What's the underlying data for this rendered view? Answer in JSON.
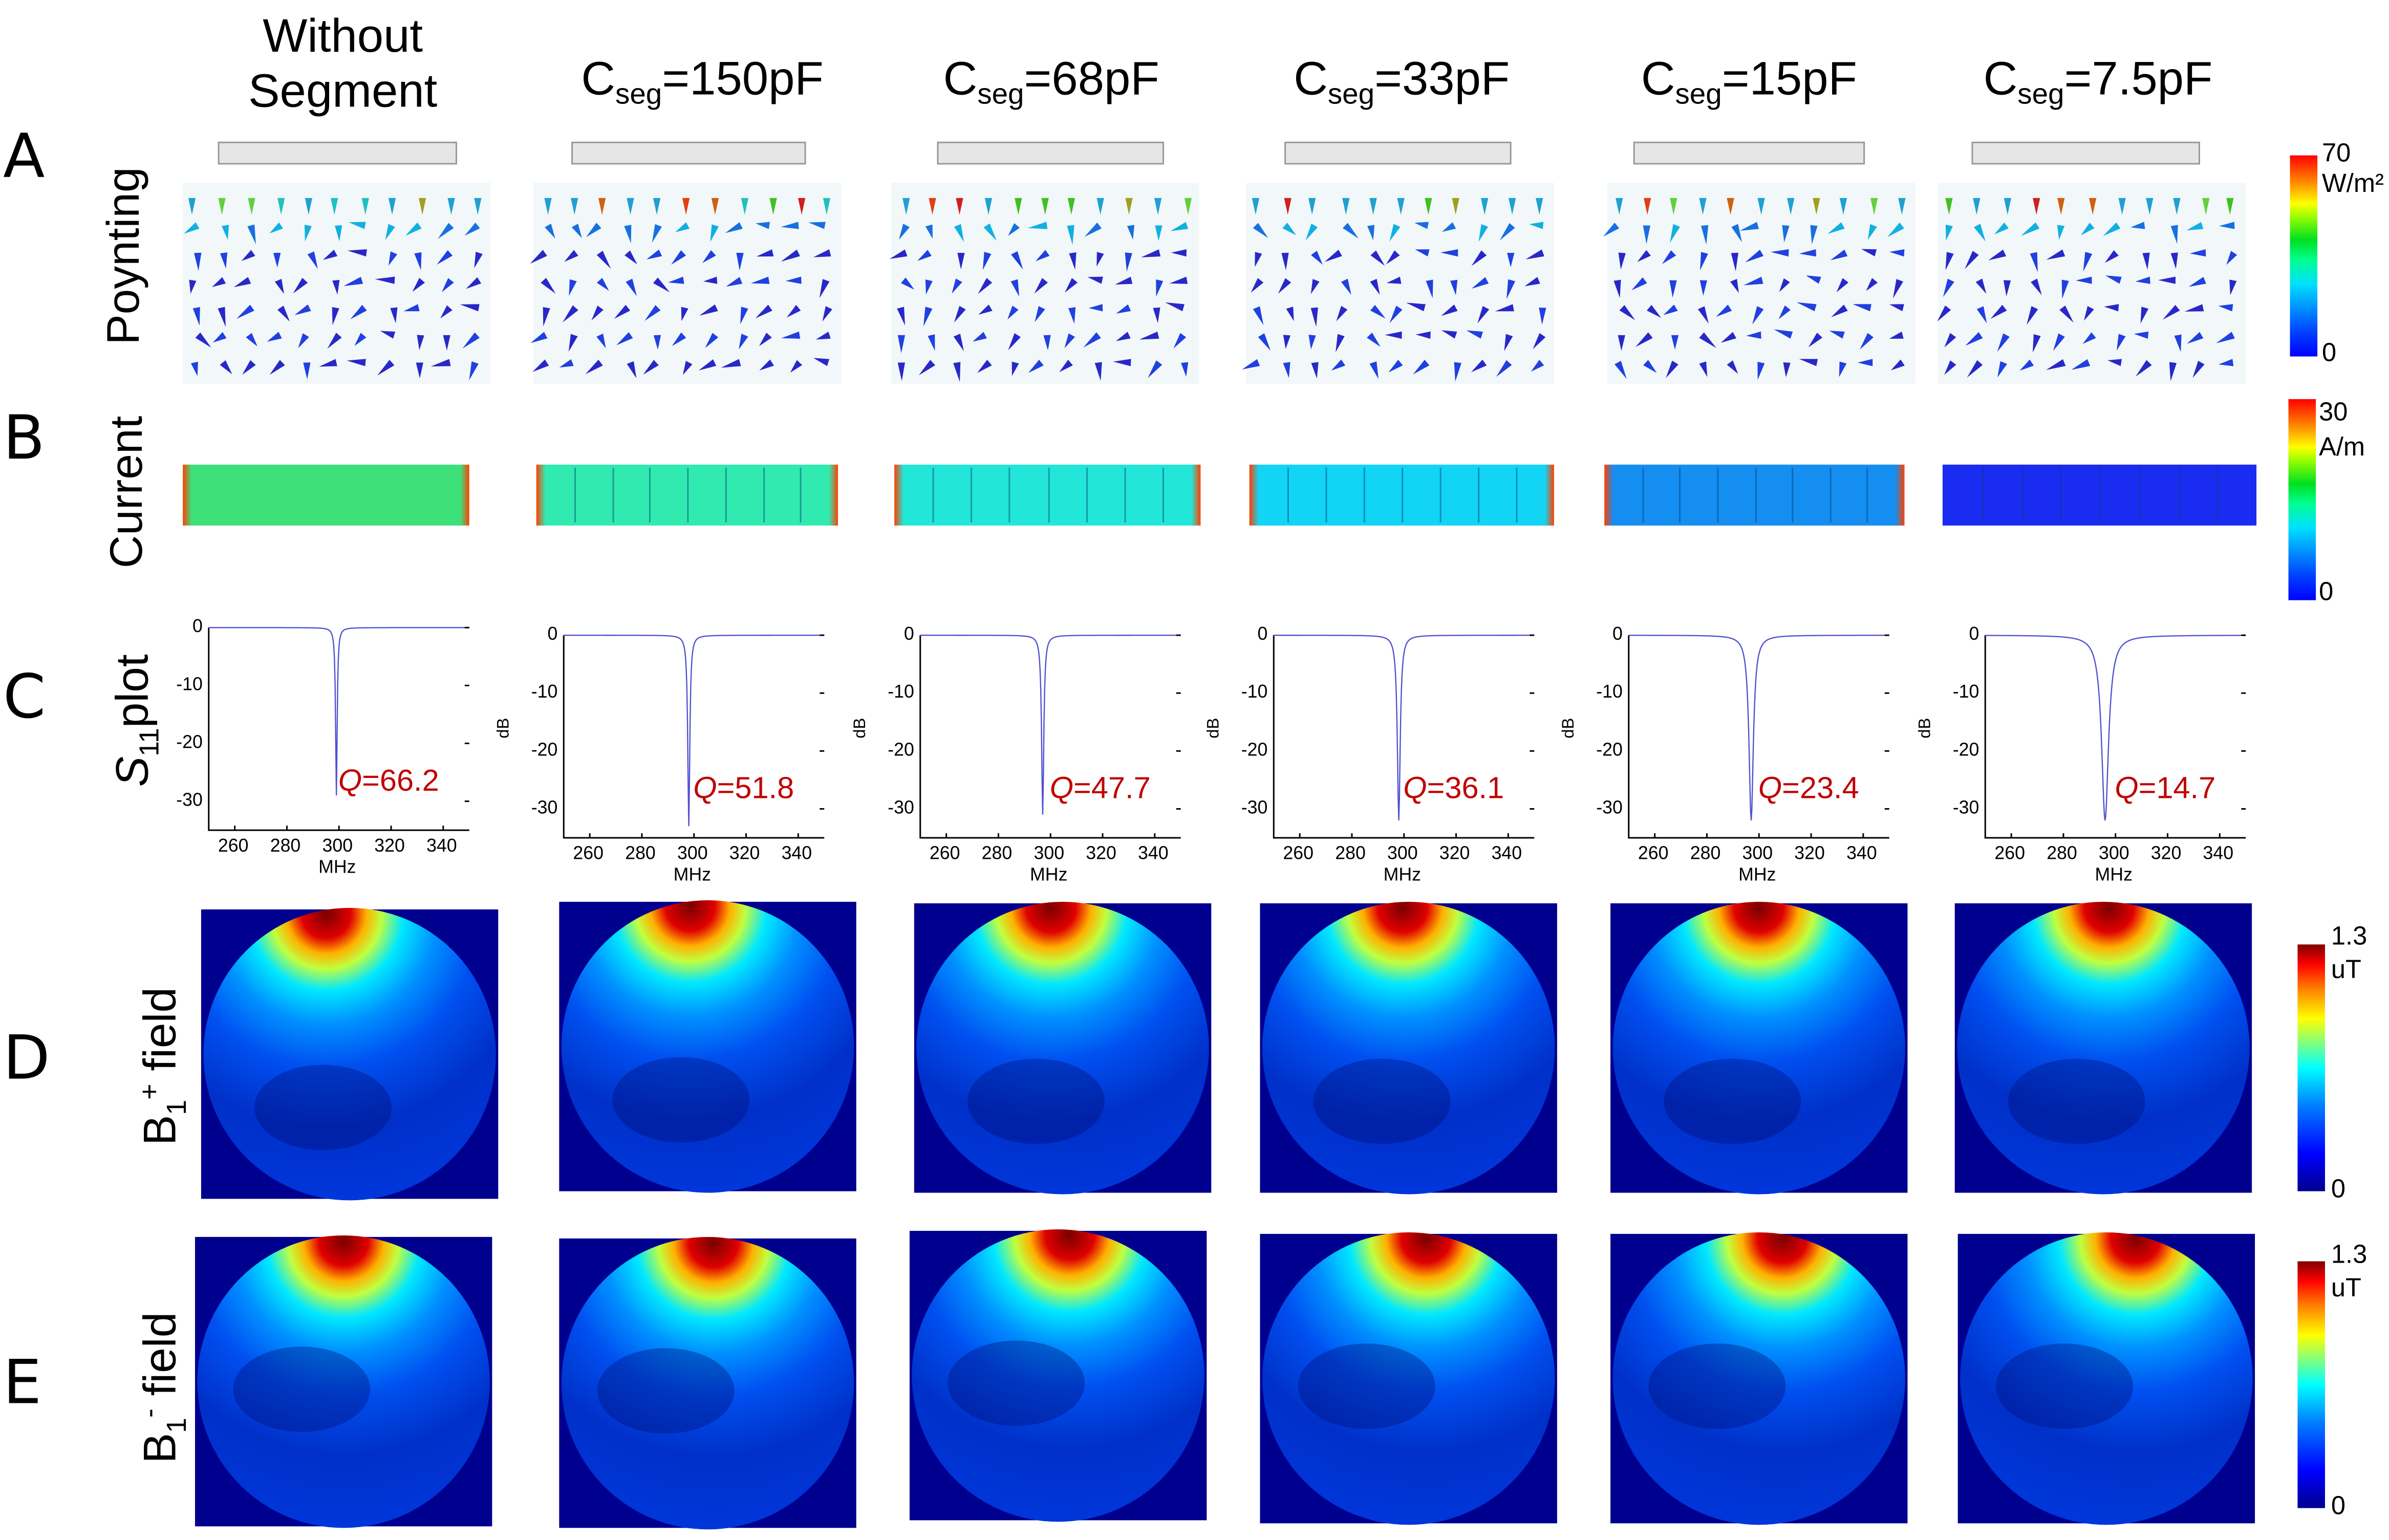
{
  "columns": [
    {
      "line1": "Without",
      "line2": "Segment"
    },
    {
      "base": "C",
      "sub": "seg",
      "value": "=150pF"
    },
    {
      "base": "C",
      "sub": "seg",
      "value": "=68pF"
    },
    {
      "base": "C",
      "sub": "seg",
      "value": "=33pF"
    },
    {
      "base": "C",
      "sub": "seg",
      "value": "=15pF"
    },
    {
      "base": "C",
      "sub": "seg",
      "value": "=7.5pF"
    }
  ],
  "rows": [
    {
      "letter": "A",
      "label": "Poynting"
    },
    {
      "letter": "B",
      "label": "Current"
    },
    {
      "letter": "C",
      "label_main": "S",
      "label_sub": "11",
      "label_rest": "plot"
    },
    {
      "letter": "D",
      "label_main": "B",
      "label_sub": "1",
      "label_sup": "+",
      "label_rest": " field"
    },
    {
      "letter": "E",
      "label_main": "B",
      "label_sub": "1",
      "label_sup": "-",
      "label_rest": " field"
    }
  ],
  "colorbars": {
    "poynting": {
      "max": "70",
      "unit": "W/m²",
      "min": "0"
    },
    "current": {
      "max": "30",
      "unit": "A/m",
      "min": "0"
    },
    "b1plus": {
      "max": "1.3",
      "unit": "uT",
      "min": "0"
    },
    "b1minus": {
      "max": "1.3",
      "unit": "uT",
      "min": "0"
    }
  },
  "current_colors": [
    "#3ee07a",
    "#30eab0",
    "#22e6d8",
    "#12d4f4",
    "#148ef0",
    "#1a2cf2"
  ],
  "chart_data": {
    "type": "line",
    "xlabel": "MHz",
    "ylabel": "dB",
    "xlim": [
      250,
      350
    ],
    "ylim": [
      -35,
      0
    ],
    "xticks": [
      260,
      280,
      300,
      320,
      340
    ],
    "yticks": [
      0,
      -10,
      -20,
      -30
    ],
    "series": [
      {
        "name": "Without Segment",
        "f0": 299,
        "min_db": -29,
        "q_label": "Q",
        "q_value": "=66.2",
        "Q": 66.2
      },
      {
        "name": "Cseg=150pF",
        "f0": 298,
        "min_db": -33,
        "q_label": "Q",
        "q_value": "=51.8",
        "Q": 51.8
      },
      {
        "name": "Cseg=68pF",
        "f0": 297,
        "min_db": -31,
        "q_label": "Q",
        "q_value": "=47.7",
        "Q": 47.7
      },
      {
        "name": "Cseg=33pF",
        "f0": 298,
        "min_db": -32,
        "q_label": "Q",
        "q_value": "=36.1",
        "Q": 36.1
      },
      {
        "name": "Cseg=15pF",
        "f0": 297,
        "min_db": -32,
        "q_label": "Q",
        "q_value": "=23.4",
        "Q": 23.4
      },
      {
        "name": "Cseg=7.5pF",
        "f0": 296,
        "min_db": -32,
        "q_label": "Q",
        "q_value": "=14.7",
        "Q": 14.7
      }
    ]
  }
}
